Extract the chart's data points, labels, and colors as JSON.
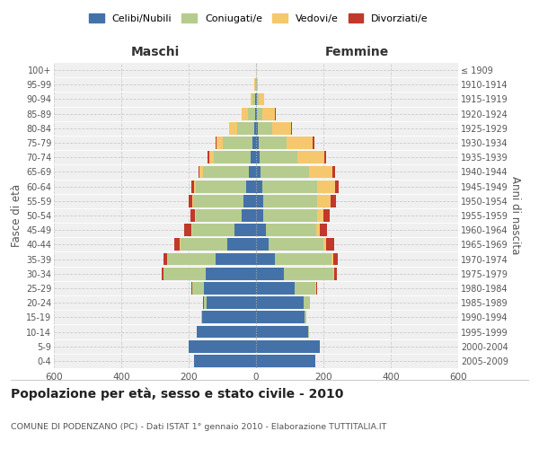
{
  "age_groups": [
    "0-4",
    "5-9",
    "10-14",
    "15-19",
    "20-24",
    "25-29",
    "30-34",
    "35-39",
    "40-44",
    "45-49",
    "50-54",
    "55-59",
    "60-64",
    "65-69",
    "70-74",
    "75-79",
    "80-84",
    "85-89",
    "90-94",
    "95-99",
    "100+"
  ],
  "birth_years": [
    "2005-2009",
    "2000-2004",
    "1995-1999",
    "1990-1994",
    "1985-1989",
    "1980-1984",
    "1975-1979",
    "1970-1974",
    "1965-1969",
    "1960-1964",
    "1955-1959",
    "1950-1954",
    "1945-1949",
    "1940-1944",
    "1935-1939",
    "1930-1934",
    "1925-1929",
    "1920-1924",
    "1915-1919",
    "1910-1914",
    "≤ 1909"
  ],
  "males": {
    "celibi": [
      185,
      200,
      175,
      160,
      148,
      155,
      150,
      120,
      85,
      65,
      42,
      38,
      30,
      22,
      15,
      10,
      5,
      3,
      2,
      1,
      0
    ],
    "coniugati": [
      0,
      0,
      0,
      2,
      8,
      35,
      125,
      145,
      140,
      125,
      138,
      148,
      150,
      135,
      110,
      88,
      52,
      22,
      8,
      2,
      0
    ],
    "vedovi": [
      0,
      0,
      0,
      0,
      0,
      0,
      0,
      0,
      1,
      1,
      2,
      3,
      5,
      10,
      15,
      20,
      22,
      18,
      6,
      2,
      1
    ],
    "divorziati": [
      0,
      0,
      0,
      0,
      1,
      2,
      5,
      10,
      18,
      22,
      12,
      10,
      8,
      5,
      5,
      3,
      1,
      0,
      0,
      0,
      0
    ]
  },
  "females": {
    "nubili": [
      175,
      190,
      155,
      145,
      140,
      115,
      82,
      55,
      38,
      30,
      22,
      20,
      18,
      14,
      10,
      8,
      5,
      3,
      2,
      1,
      0
    ],
    "coniugate": [
      0,
      0,
      2,
      5,
      20,
      62,
      148,
      168,
      162,
      148,
      158,
      162,
      162,
      142,
      112,
      82,
      42,
      16,
      6,
      2,
      0
    ],
    "vedove": [
      0,
      0,
      0,
      0,
      0,
      1,
      2,
      5,
      8,
      10,
      20,
      40,
      55,
      70,
      80,
      78,
      58,
      38,
      16,
      3,
      1
    ],
    "divorziate": [
      0,
      0,
      0,
      0,
      1,
      2,
      8,
      15,
      25,
      22,
      18,
      15,
      10,
      8,
      5,
      5,
      2,
      1,
      0,
      0,
      0
    ]
  },
  "colors": {
    "celibi": "#4472a8",
    "coniugati": "#b5cc8e",
    "vedovi": "#f5c86e",
    "divorziati": "#c0392b"
  },
  "xlim": 600,
  "title": "Popolazione per età, sesso e stato civile - 2010",
  "subtitle": "COMUNE DI PODENZANO (PC) - Dati ISTAT 1° gennaio 2010 - Elaborazione TUTTITALIA.IT",
  "ylabel_left": "Fasce di età",
  "ylabel_right": "Anni di nascita",
  "xlabel_left": "Maschi",
  "xlabel_right": "Femmine",
  "legend_labels": [
    "Celibi/Nubili",
    "Coniugati/e",
    "Vedovi/e",
    "Divorziati/e"
  ],
  "bg_color": "#f0f0f0"
}
